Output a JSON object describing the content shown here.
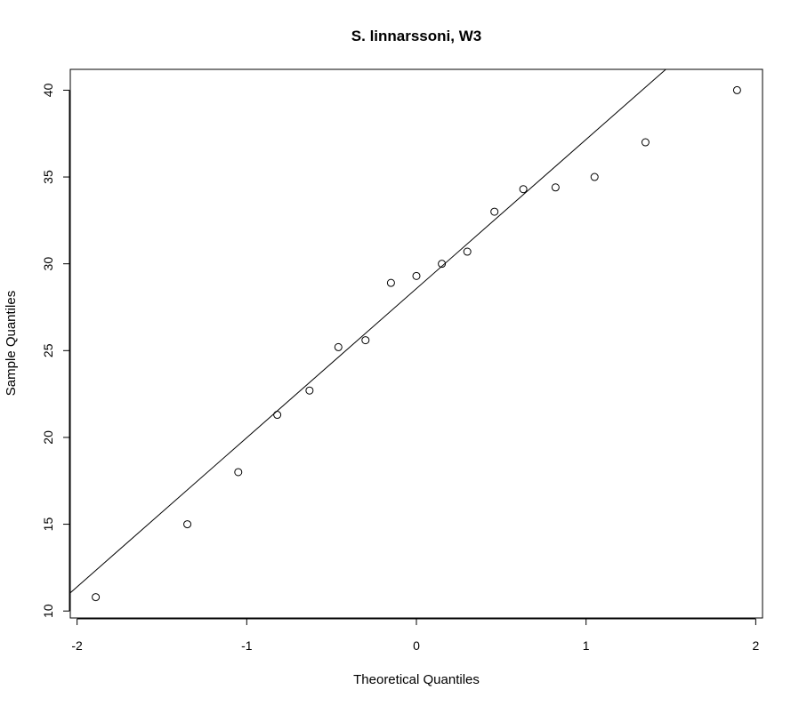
{
  "chart_data": {
    "type": "scatter",
    "title": "S. linnarssoni, W3",
    "xlabel": "Theoretical Quantiles",
    "ylabel": "Sample Quantiles",
    "xlim": [
      -2.04,
      2.04
    ],
    "ylim": [
      9.6,
      41.2
    ],
    "x_ticks": [
      -2,
      -1,
      0,
      1,
      2
    ],
    "y_ticks": [
      10,
      15,
      20,
      25,
      30,
      35,
      40
    ],
    "grid": false,
    "points": [
      {
        "x": -1.89,
        "y": 10.8
      },
      {
        "x": -1.35,
        "y": 15.0
      },
      {
        "x": -1.05,
        "y": 18.0
      },
      {
        "x": -0.82,
        "y": 21.3
      },
      {
        "x": -0.63,
        "y": 22.7
      },
      {
        "x": -0.46,
        "y": 25.2
      },
      {
        "x": -0.3,
        "y": 25.6
      },
      {
        "x": -0.15,
        "y": 28.9
      },
      {
        "x": 0.0,
        "y": 29.3
      },
      {
        "x": 0.15,
        "y": 30.0
      },
      {
        "x": 0.3,
        "y": 30.7
      },
      {
        "x": 0.46,
        "y": 33.0
      },
      {
        "x": 0.63,
        "y": 34.3
      },
      {
        "x": 0.82,
        "y": 34.4
      },
      {
        "x": 1.05,
        "y": 35.0
      },
      {
        "x": 1.35,
        "y": 37.0
      },
      {
        "x": 1.89,
        "y": 40.0
      }
    ],
    "reference_line": {
      "x1": -2.04,
      "y1": 11.05,
      "x2": 1.47,
      "y2": 41.2
    }
  }
}
